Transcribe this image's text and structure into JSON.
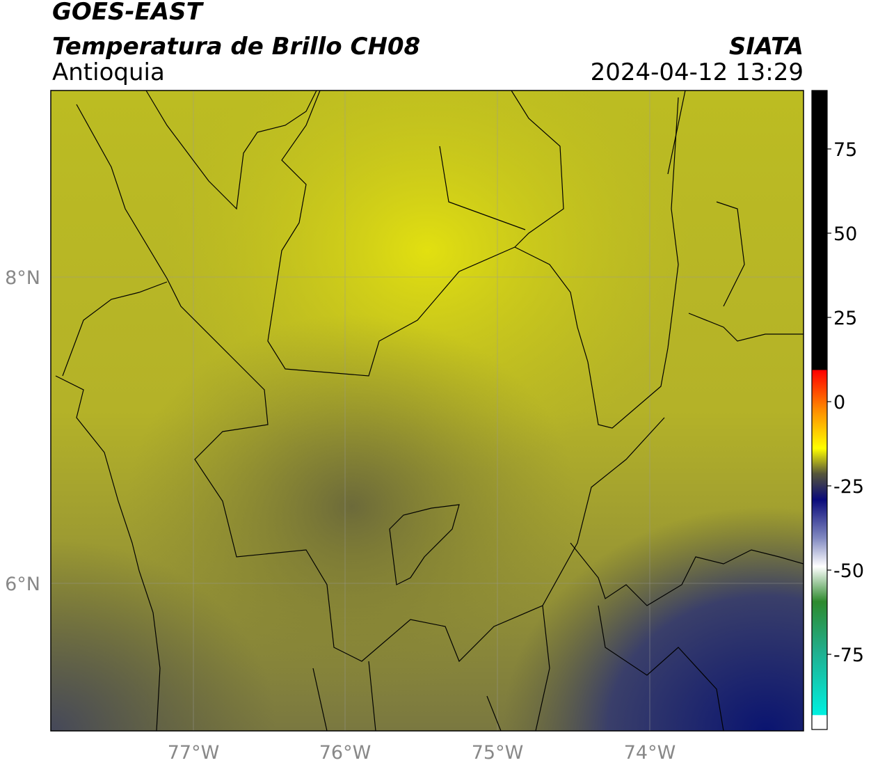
{
  "header": {
    "title": "GOES-EAST",
    "subtitle": "Temperatura de Brillo CH08",
    "region": "Antioquia",
    "source": "SIATA",
    "datetime": "2024-04-12 13:29"
  },
  "map": {
    "lat_labels": [
      "8°N",
      "6°N"
    ],
    "lon_labels": [
      "77°W",
      "76°W",
      "75°W",
      "74°W"
    ]
  },
  "colorbar": {
    "ticks": [
      75,
      50,
      25,
      0,
      -25,
      -50,
      -75
    ]
  }
}
